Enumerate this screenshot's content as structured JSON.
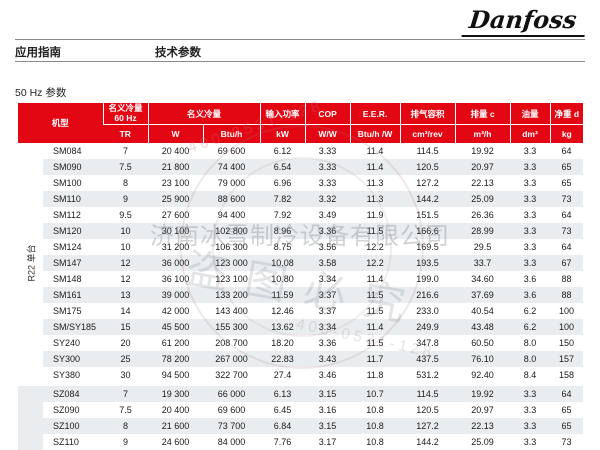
{
  "brand": {
    "logo_text": "Danfoss"
  },
  "page_header": {
    "left_label": "应用指南",
    "right_label": "技术参数"
  },
  "section_title": "50 Hz 参数",
  "colors": {
    "danfoss_red": "#e30613",
    "alt_row": "#e9edf0",
    "group2_strip": "#e3e8eb"
  },
  "table": {
    "headers": {
      "model": "机型",
      "cap60_line1": "名义冷量",
      "cap60_line2": "60 Hz",
      "cap": "名义冷量",
      "power": "输入功率",
      "cop": "COP",
      "eer": "E.E.R.",
      "disp_vol": "排气容积",
      "disp": "排量 c",
      "oil": "油量",
      "weight": "净重 d"
    },
    "units": {
      "tr": "TR",
      "w": "W",
      "btu": "Btu/h",
      "kw": "kW",
      "ww": "W/W",
      "btuw": "Btu/h /W",
      "cm3rev": "cm³/rev",
      "m3h": "m³/h",
      "dm3": "dm³",
      "kg": "kg"
    },
    "groups": [
      {
        "label": "R22 单台",
        "rows": [
          [
            "SM084",
            "7",
            "20 400",
            "69 600",
            "6.12",
            "3.33",
            "11.4",
            "114.5",
            "19.92",
            "3.3",
            "64"
          ],
          [
            "SM090",
            "7.5",
            "21 800",
            "74 400",
            "6.54",
            "3.33",
            "11.4",
            "120.5",
            "20.97",
            "3.3",
            "65"
          ],
          [
            "SM100",
            "8",
            "23 100",
            "79 000",
            "6.96",
            "3.33",
            "11.3",
            "127.2",
            "22.13",
            "3.3",
            "65"
          ],
          [
            "SM110",
            "9",
            "25 900",
            "88 600",
            "7.82",
            "3.32",
            "11.3",
            "144.2",
            "25.09",
            "3.3",
            "73"
          ],
          [
            "SM112",
            "9.5",
            "27 600",
            "94 400",
            "7.92",
            "3.49",
            "11.9",
            "151.5",
            "26.36",
            "3.3",
            "64"
          ],
          [
            "SM120",
            "10",
            "30 100",
            "102 800",
            "8.96",
            "3.36",
            "11.5",
            "166.6",
            "28.99",
            "3.3",
            "73"
          ],
          [
            "SM124",
            "10",
            "31 200",
            "106 300",
            "8.75",
            "3.56",
            "12.2",
            "169.5",
            "29.5",
            "3.3",
            "64"
          ],
          [
            "SM147",
            "12",
            "36 000",
            "123 000",
            "10.08",
            "3.58",
            "12.2",
            "193.5",
            "33.7",
            "3.3",
            "67"
          ],
          [
            "SM148",
            "12",
            "36 100",
            "123 100",
            "10.80",
            "3.34",
            "11.4",
            "199.0",
            "34.60",
            "3.6",
            "88"
          ],
          [
            "SM161",
            "13",
            "39 000",
            "133 200",
            "11.59",
            "3.37",
            "11.5",
            "216.6",
            "37.69",
            "3.6",
            "88"
          ],
          [
            "SM175",
            "14",
            "42 000",
            "143 400",
            "12.46",
            "3.37",
            "11.5",
            "233.0",
            "40.54",
            "6.2",
            "100"
          ],
          [
            "SM/SY185",
            "15",
            "45 500",
            "155 300",
            "13.62",
            "3.34",
            "11.4",
            "249.9",
            "43.48",
            "6.2",
            "100"
          ],
          [
            "SY240",
            "20",
            "61 200",
            "208 700",
            "18.20",
            "3.36",
            "11.5",
            "347.8",
            "60.50",
            "8.0",
            "150"
          ],
          [
            "SY300",
            "25",
            "78 200",
            "267 000",
            "22.83",
            "3.43",
            "11.7",
            "437.5",
            "76.10",
            "8.0",
            "157"
          ],
          [
            "SY380",
            "30",
            "94 500",
            "322 700",
            "27.4",
            "3.46",
            "11.8",
            "531.2",
            "92.40",
            "8.4",
            "158"
          ]
        ]
      },
      {
        "label": "",
        "rows": [
          [
            "SZ084",
            "7",
            "19 300",
            "66 000",
            "6.13",
            "3.15",
            "10.7",
            "114.5",
            "19.92",
            "3.3",
            "64"
          ],
          [
            "SZ090",
            "7.5",
            "20 400",
            "69 600",
            "6.45",
            "3.16",
            "10.8",
            "120.5",
            "20.97",
            "3.3",
            "65"
          ],
          [
            "SZ100",
            "8",
            "21 600",
            "73 700",
            "6.84",
            "3.15",
            "10.8",
            "127.2",
            "22.13",
            "3.3",
            "65"
          ],
          [
            "SZ110",
            "9",
            "24 600",
            "84 000",
            "7.76",
            "3.17",
            "10.8",
            "144.2",
            "25.09",
            "3.3",
            "73"
          ]
        ]
      }
    ]
  },
  "watermark": {
    "company": "济南冰雪制冷设备有限公司",
    "warning": "盗图必究",
    "phone": "400-0531-128"
  }
}
